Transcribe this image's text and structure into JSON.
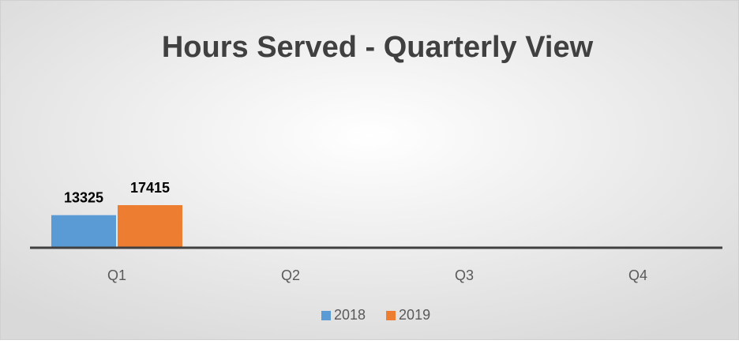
{
  "chart_data": {
    "type": "bar",
    "title": "Hours Served - Quarterly View",
    "categories": [
      "Q1",
      "Q2",
      "Q3",
      "Q4"
    ],
    "series": [
      {
        "name": "2018",
        "color": "#5b9bd5",
        "values": [
          13325,
          null,
          null,
          null
        ]
      },
      {
        "name": "2019",
        "color": "#ed7d31",
        "values": [
          17415,
          null,
          null,
          null
        ]
      }
    ],
    "legend": "bottom"
  }
}
